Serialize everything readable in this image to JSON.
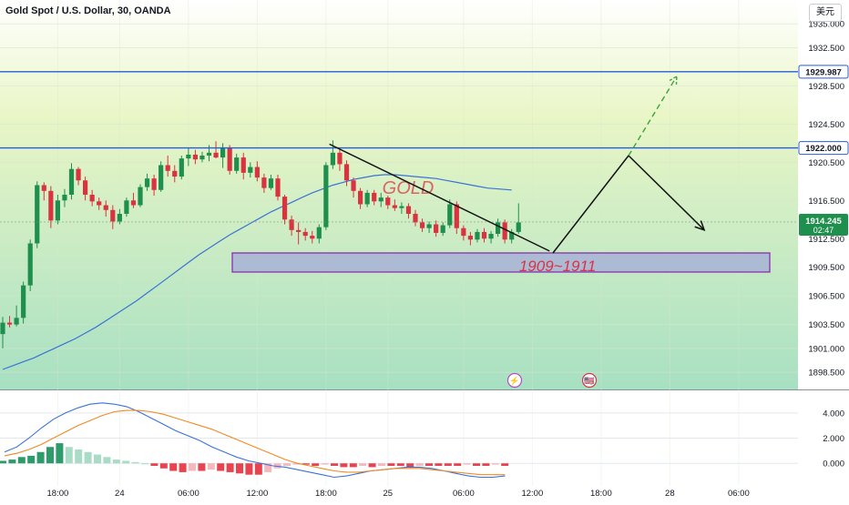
{
  "header": {
    "title": "Gold Spot / U.S. Dollar, 30, OANDA",
    "currency_button": "美元"
  },
  "colors": {
    "bg_top": "#ffffff",
    "bg_mid": "#e9f6c6",
    "bg_bottom": "#a7e0c2",
    "grid": "#d8e6cf",
    "up": "#1f8f4d",
    "down": "#d9333f",
    "ma": "#3a73d6",
    "level_line": "#2a5bd7",
    "zone_fill": "#a8b2d6",
    "zone_border": "#8a2fb0",
    "annotation_red": "#d9334a",
    "projection": "#111111",
    "dashed_projection": "#3aa63a",
    "macd_line": "#3a73d6",
    "signal_line": "#f08a24",
    "hist_pos": "#2e9b6a",
    "hist_pos_light": "#a9dcc6",
    "hist_neg": "#e8434f",
    "hist_neg_light": "#f5b8bc"
  },
  "annotations": {
    "watermark": "GOLD",
    "zone_label": "1909~1911"
  },
  "price_badges": {
    "level_upper": "1929.987",
    "level_lower": "1922.000",
    "last_price": "1914.245",
    "countdown": "02:47"
  },
  "event_icons": [
    {
      "name": "lightning-event-icon",
      "symbol": "⚡"
    },
    {
      "name": "us-flag-event-icon",
      "symbol": "🇺🇸"
    }
  ],
  "chart_data": {
    "type": "candlestick",
    "symbol": "Gold Spot / U.S. Dollar",
    "interval": "30",
    "exchange": "OANDA",
    "y_range": [
      1896.7,
      1937.5
    ],
    "y_ticks": [
      "1935.000",
      "1932.500",
      "1928.500",
      "1924.500",
      "1920.500",
      "1916.500",
      "1912.500",
      "1909.500",
      "1906.500",
      "1903.500",
      "1901.000",
      "1898.500"
    ],
    "x_ticks": [
      {
        "label": "18:00",
        "bar": 8
      },
      {
        "label": "24",
        "bar": 17
      },
      {
        "label": "06:00",
        "bar": 27
      },
      {
        "label": "12:00",
        "bar": 37
      },
      {
        "label": "18:00",
        "bar": 47
      },
      {
        "label": "25",
        "bar": 56
      },
      {
        "label": "06:00",
        "bar": 67
      },
      {
        "label": "12:00",
        "bar": 77
      },
      {
        "label": "18:00",
        "bar": 87
      },
      {
        "label": "28",
        "bar": 97
      },
      {
        "label": "06:00",
        "bar": 107
      }
    ],
    "horizontal_levels": [
      1929.987,
      1922.0
    ],
    "zone": {
      "low": 1909.0,
      "high": 1911.0
    },
    "candles": [
      [
        1902.5,
        1904.3,
        1901.0,
        1903.7
      ],
      [
        1903.7,
        1904.4,
        1903.2,
        1903.5
      ],
      [
        1903.5,
        1905.5,
        1903.3,
        1904.2
      ],
      [
        1904.2,
        1908.0,
        1903.6,
        1907.6
      ],
      [
        1907.6,
        1912.4,
        1907.0,
        1912.0
      ],
      [
        1912.0,
        1918.5,
        1911.5,
        1918.1
      ],
      [
        1918.1,
        1918.4,
        1916.5,
        1917.5
      ],
      [
        1917.5,
        1918.0,
        1913.6,
        1914.4
      ],
      [
        1914.4,
        1917.1,
        1914.0,
        1916.5
      ],
      [
        1916.5,
        1917.7,
        1915.8,
        1917.1
      ],
      [
        1917.1,
        1920.4,
        1916.6,
        1919.8
      ],
      [
        1919.8,
        1920.0,
        1918.1,
        1918.6
      ],
      [
        1918.6,
        1919.0,
        1916.5,
        1917.1
      ],
      [
        1917.1,
        1917.6,
        1915.9,
        1916.4
      ],
      [
        1916.4,
        1916.8,
        1915.5,
        1916.0
      ],
      [
        1916.0,
        1916.5,
        1914.8,
        1915.5
      ],
      [
        1915.5,
        1916.0,
        1913.5,
        1914.3
      ],
      [
        1914.3,
        1915.6,
        1914.0,
        1915.1
      ],
      [
        1915.1,
        1916.8,
        1914.8,
        1916.5
      ],
      [
        1916.5,
        1917.3,
        1915.7,
        1916.0
      ],
      [
        1916.0,
        1918.2,
        1915.8,
        1917.9
      ],
      [
        1917.9,
        1919.3,
        1917.5,
        1918.8
      ],
      [
        1918.8,
        1919.2,
        1917.0,
        1917.6
      ],
      [
        1917.6,
        1920.6,
        1917.4,
        1920.2
      ],
      [
        1920.2,
        1921.2,
        1919.0,
        1919.6
      ],
      [
        1919.6,
        1920.2,
        1918.4,
        1919.0
      ],
      [
        1919.0,
        1921.2,
        1918.7,
        1920.9
      ],
      [
        1920.9,
        1922.0,
        1920.1,
        1921.3
      ],
      [
        1921.3,
        1921.8,
        1920.3,
        1920.8
      ],
      [
        1920.8,
        1921.6,
        1920.5,
        1921.2
      ],
      [
        1921.2,
        1922.3,
        1920.6,
        1921.5
      ],
      [
        1921.5,
        1922.7,
        1920.9,
        1921.0
      ],
      [
        1921.0,
        1922.5,
        1919.9,
        1922.0
      ],
      [
        1922.0,
        1922.3,
        1919.2,
        1919.6
      ],
      [
        1919.6,
        1921.4,
        1919.3,
        1921.0
      ],
      [
        1921.0,
        1921.5,
        1918.7,
        1919.4
      ],
      [
        1919.4,
        1920.5,
        1918.9,
        1920.0
      ],
      [
        1920.0,
        1920.6,
        1918.5,
        1918.9
      ],
      [
        1918.9,
        1919.3,
        1917.3,
        1917.8
      ],
      [
        1917.8,
        1919.2,
        1917.6,
        1918.8
      ],
      [
        1918.8,
        1919.2,
        1916.5,
        1916.9
      ],
      [
        1916.9,
        1917.1,
        1914.0,
        1914.5
      ],
      [
        1914.5,
        1914.9,
        1912.8,
        1913.4
      ],
      [
        1913.4,
        1914.2,
        1911.9,
        1913.2
      ],
      [
        1913.2,
        1913.6,
        1912.3,
        1912.8
      ],
      [
        1912.8,
        1913.3,
        1912.0,
        1912.5
      ],
      [
        1912.5,
        1914.0,
        1912.0,
        1913.7
      ],
      [
        1913.7,
        1920.5,
        1913.4,
        1920.2
      ],
      [
        1920.2,
        1922.8,
        1919.8,
        1921.5
      ],
      [
        1921.5,
        1921.9,
        1919.6,
        1920.3
      ],
      [
        1920.3,
        1920.7,
        1918.0,
        1918.6
      ],
      [
        1918.6,
        1918.9,
        1916.8,
        1917.5
      ],
      [
        1917.5,
        1917.8,
        1915.6,
        1916.1
      ],
      [
        1916.1,
        1917.6,
        1915.8,
        1917.3
      ],
      [
        1917.3,
        1917.6,
        1916.0,
        1916.4
      ],
      [
        1916.4,
        1917.3,
        1915.8,
        1916.8
      ],
      [
        1916.8,
        1917.0,
        1915.6,
        1916.0
      ],
      [
        1916.0,
        1916.6,
        1915.4,
        1915.7
      ],
      [
        1915.7,
        1916.3,
        1915.1,
        1915.9
      ],
      [
        1915.9,
        1916.2,
        1914.6,
        1915.1
      ],
      [
        1915.1,
        1915.5,
        1913.8,
        1914.2
      ],
      [
        1914.2,
        1914.6,
        1913.2,
        1913.6
      ],
      [
        1913.6,
        1914.3,
        1913.1,
        1914.0
      ],
      [
        1914.0,
        1914.4,
        1912.7,
        1913.1
      ],
      [
        1913.1,
        1914.2,
        1912.8,
        1913.9
      ],
      [
        1913.9,
        1916.6,
        1913.6,
        1916.1
      ],
      [
        1916.1,
        1916.4,
        1913.0,
        1913.6
      ],
      [
        1913.6,
        1913.9,
        1912.3,
        1912.8
      ],
      [
        1912.8,
        1913.2,
        1911.8,
        1912.4
      ],
      [
        1912.4,
        1913.5,
        1912.1,
        1913.2
      ],
      [
        1913.2,
        1913.6,
        1912.1,
        1912.5
      ],
      [
        1912.5,
        1913.3,
        1912.0,
        1913.0
      ],
      [
        1913.0,
        1914.6,
        1912.7,
        1914.2
      ],
      [
        1914.2,
        1914.5,
        1912.0,
        1912.4
      ],
      [
        1912.4,
        1913.5,
        1912.0,
        1913.2
      ],
      [
        1913.2,
        1916.2,
        1913.0,
        1914.2
      ]
    ],
    "moving_average_values": [
      1898.8,
      1899.2,
      1899.6,
      1900.0,
      1900.5,
      1901.0,
      1901.5,
      1902.0,
      1902.6,
      1903.2,
      1903.9,
      1904.6,
      1905.3,
      1906.0,
      1906.8,
      1907.6,
      1908.4,
      1909.2,
      1910.0,
      1910.8,
      1911.5,
      1912.2,
      1912.9,
      1913.5,
      1914.1,
      1914.7,
      1915.3,
      1915.8,
      1916.3,
      1916.8,
      1917.3,
      1917.7,
      1918.1,
      1918.4,
      1918.7,
      1918.9,
      1919.1,
      1919.2,
      1919.2,
      1919.1,
      1919.0,
      1918.9,
      1918.8,
      1918.6,
      1918.4,
      1918.2,
      1918.0,
      1917.8
    ],
    "projection_path": [
      {
        "bar": 80,
        "price": 1911.0
      },
      {
        "bar": 91,
        "price": 1921.2
      },
      {
        "bar": 102,
        "price": 1913.4
      }
    ],
    "dashed_projection": [
      {
        "bar": 91,
        "price": 1921.2
      },
      {
        "bar": 98,
        "price": 1929.5
      }
    ],
    "downtrend_line": [
      {
        "bar": 47.5,
        "price": 1922.4
      },
      {
        "bar": 79.5,
        "price": 1911.2
      }
    ],
    "macd": {
      "y_ticks": [
        "4.000",
        "2.000",
        "0.000"
      ],
      "y_range": [
        -1.5,
        5.0
      ],
      "macd_line": [
        0.9,
        1.3,
        2.0,
        2.8,
        3.5,
        4.0,
        4.4,
        4.7,
        4.8,
        4.7,
        4.5,
        4.1,
        3.6,
        3.1,
        2.6,
        2.2,
        1.8,
        1.3,
        0.9,
        0.5,
        0.2,
        0.0,
        -0.2,
        -0.3,
        -0.5,
        -0.7,
        -0.9,
        -1.1,
        -1.0,
        -0.8,
        -0.6,
        -0.5,
        -0.4,
        -0.3,
        -0.3,
        -0.4,
        -0.6,
        -0.8,
        -1.0,
        -1.1,
        -1.1,
        -1.0
      ],
      "signal_line": [
        0.6,
        0.8,
        1.1,
        1.5,
        2.0,
        2.5,
        3.0,
        3.4,
        3.8,
        4.1,
        4.2,
        4.2,
        4.1,
        3.9,
        3.6,
        3.3,
        3.0,
        2.7,
        2.3,
        1.9,
        1.5,
        1.1,
        0.7,
        0.3,
        0.0,
        -0.2,
        -0.4,
        -0.6,
        -0.7,
        -0.7,
        -0.6,
        -0.5,
        -0.4,
        -0.4,
        -0.4,
        -0.5,
        -0.6,
        -0.7,
        -0.8,
        -0.9,
        -0.9,
        -0.9
      ],
      "histogram": [
        0.2,
        0.3,
        0.5,
        0.6,
        0.9,
        1.3,
        1.6,
        1.3,
        1.1,
        0.9,
        0.7,
        0.5,
        0.3,
        0.2,
        0.1,
        0.0,
        -0.2,
        -0.4,
        -0.6,
        -0.7,
        -0.6,
        -0.6,
        -0.5,
        -0.6,
        -0.7,
        -0.8,
        -0.9,
        -0.9,
        -0.7,
        -0.4,
        -0.2,
        -0.1,
        -0.1,
        -0.2,
        -0.1,
        -0.2,
        -0.3,
        -0.3,
        -0.2,
        -0.3,
        -0.2,
        -0.2,
        -0.2,
        -0.3,
        -0.2,
        -0.2,
        -0.2,
        -0.2,
        -0.2,
        -0.1,
        -0.2,
        -0.2,
        -0.1,
        -0.2
      ]
    }
  }
}
